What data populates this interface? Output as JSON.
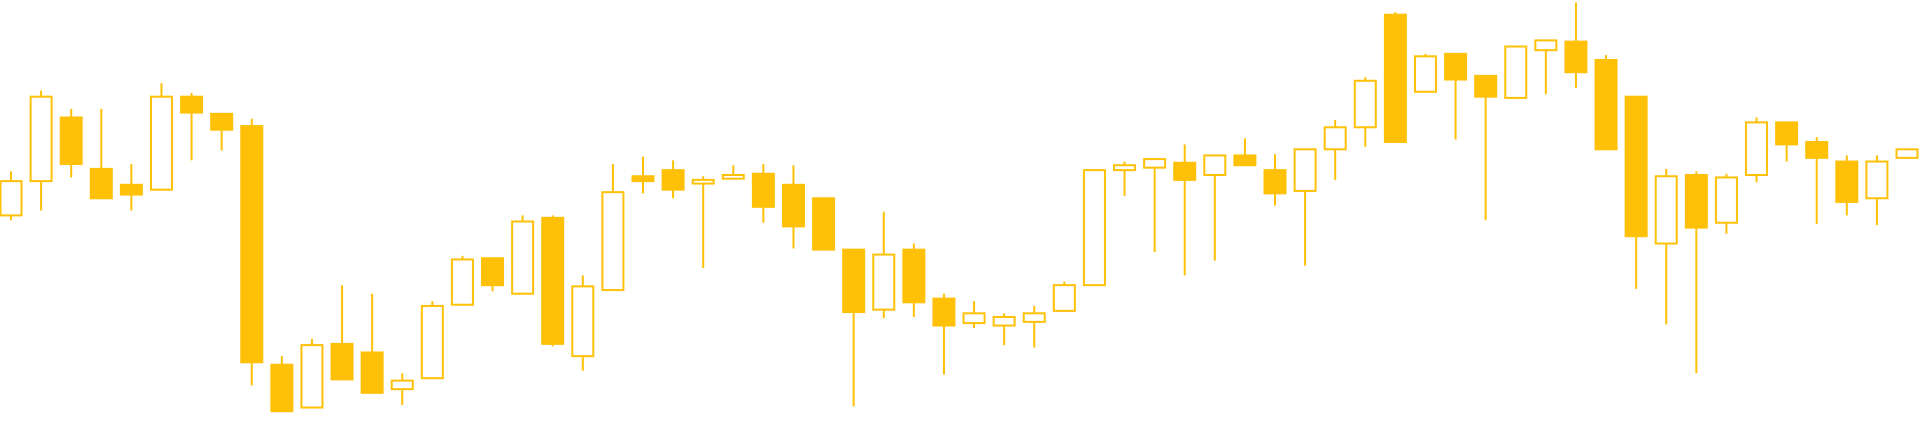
{
  "chart_data": {
    "type": "candlestick",
    "color": "#ffc107",
    "ylim": [
      0,
      344
    ],
    "open": [
      168,
      196,
      248,
      206,
      193,
      189,
      265,
      251,
      241,
      46,
      11,
      63,
      56,
      26,
      35,
      95,
      133,
      104,
      166,
      53,
      107,
      200,
      205,
      194,
      198,
      202,
      193,
      182,
      140,
      91,
      140,
      100,
      80,
      78,
      81,
      90,
      111,
      205,
      207,
      211,
      201,
      217,
      205,
      188,
      222,
      240,
      332,
      269,
      300,
      282,
      264,
      303,
      310,
      295,
      265,
      145,
      201,
      162,
      201,
      244,
      228,
      212,
      182,
      215
    ],
    "high": [
      204,
      270,
      255,
      255,
      210,
      276,
      268,
      251,
      247,
      53,
      67,
      111,
      104,
      39,
      98,
      135,
      133,
      168,
      168,
      119,
      210,
      216,
      213,
      200,
      209,
      210,
      209,
      182,
      140,
      171,
      145,
      104,
      98,
      88,
      94,
      114,
      205,
      212,
      214,
      226,
      217,
      231,
      218,
      222,
      246,
      281,
      334,
      300,
      300,
      282,
      306,
      311,
      342,
      299,
      265,
      206,
      204,
      202,
      248,
      244,
      232,
      217,
      217,
      222
    ],
    "low": [
      164,
      172,
      199,
      182,
      172,
      189,
      213,
      221,
      29,
      8,
      11,
      34,
      23,
      13,
      35,
      95,
      106,
      104,
      61,
      41,
      107,
      186,
      182,
      125,
      198,
      162,
      141,
      140,
      12,
      84,
      85,
      38,
      76,
      62,
      60,
      90,
      111,
      184,
      138,
      119,
      131,
      209,
      176,
      127,
      197,
      224,
      228,
      269,
      230,
      164,
      264,
      267,
      272,
      222,
      108,
      79,
      39,
      153,
      195,
      212,
      161,
      168,
      160,
      215
    ],
    "close": [
      196,
      265,
      210,
      182,
      185,
      265,
      252,
      238,
      48,
      8,
      62,
      34,
      23,
      33,
      94,
      132,
      111,
      163,
      63,
      110,
      187,
      196,
      189,
      197,
      201,
      175,
      159,
      140,
      89,
      136,
      97,
      78,
      88,
      85,
      88,
      111,
      205,
      209,
      214,
      197,
      217,
      209,
      186,
      222,
      240,
      278,
      228,
      298,
      279,
      265,
      306,
      311,
      285,
      222,
      151,
      200,
      158,
      199,
      244,
      226,
      215,
      179,
      212,
      222
    ]
  }
}
